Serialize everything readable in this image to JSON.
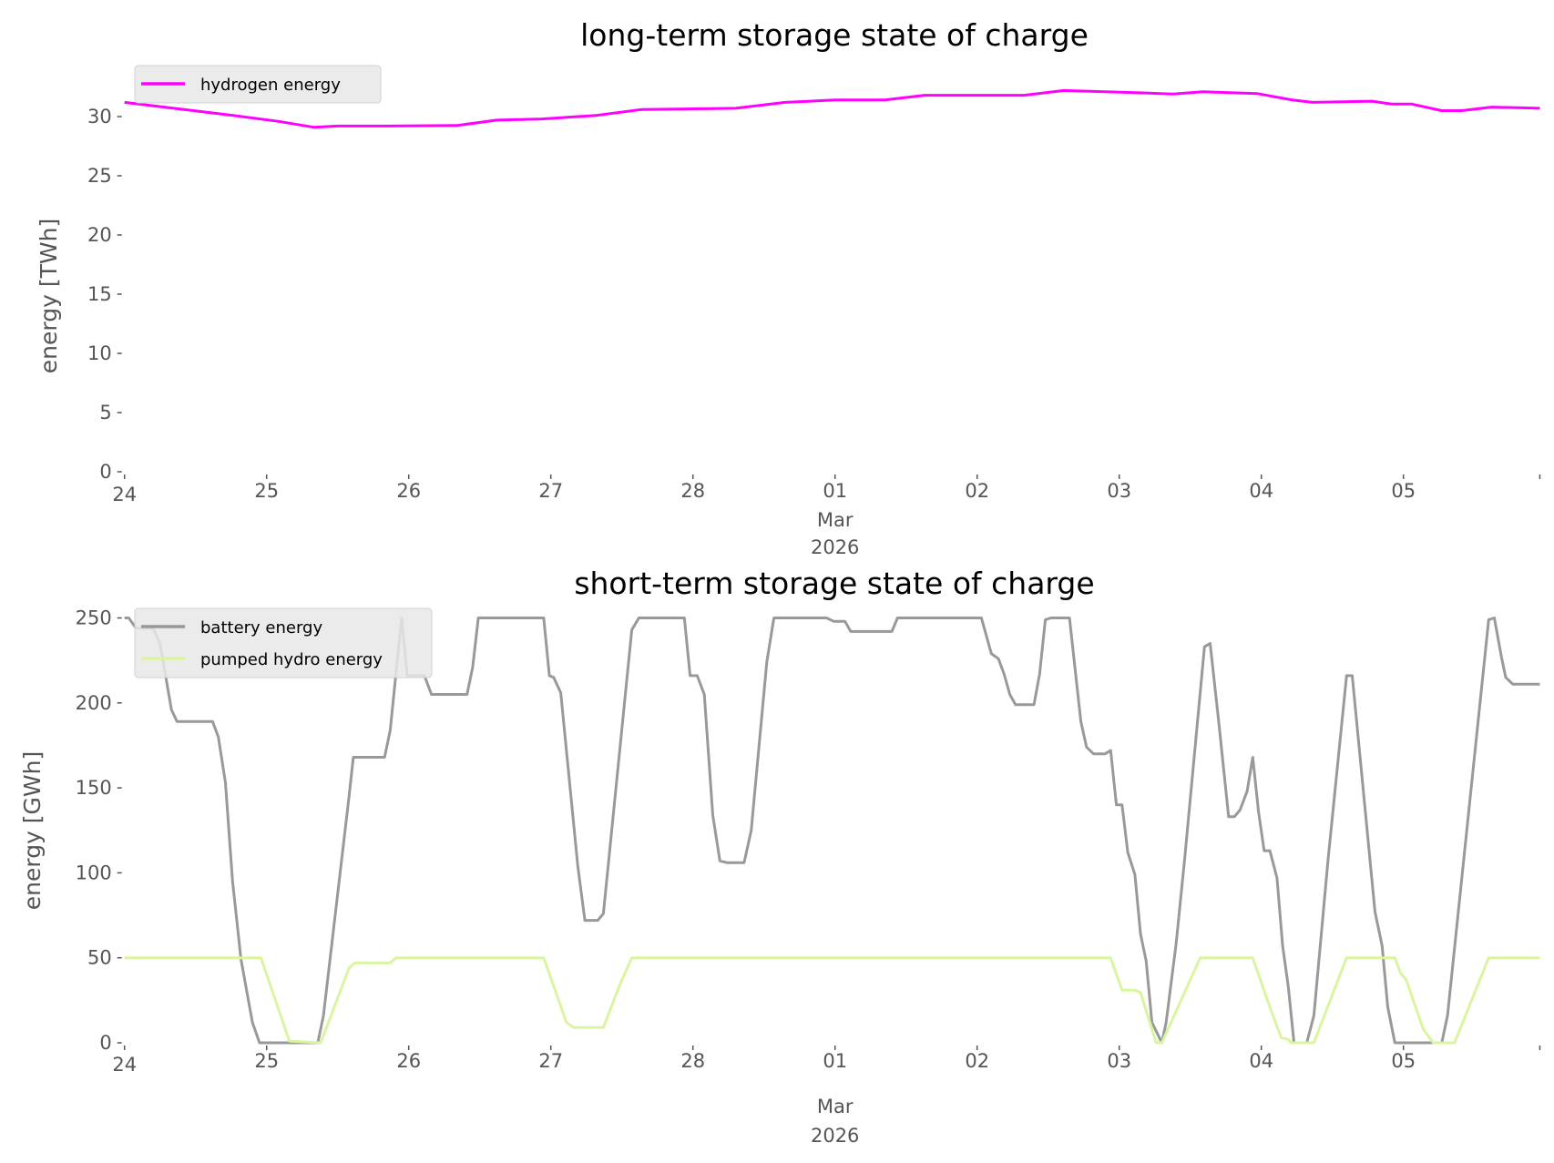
{
  "chart_data": [
    {
      "type": "line",
      "title": "long-term storage state of charge",
      "xlabel": "",
      "ylabel": "energy [TWh]",
      "x_unit": "days since 24 Feb 2026 00:00",
      "xlim": [
        0,
        9.96
      ],
      "ylim": [
        0,
        33
      ],
      "yticks": [
        0,
        5,
        10,
        15,
        20,
        25,
        30
      ],
      "xtick_labels": [
        "24",
        "25",
        "26",
        "27",
        "28",
        "01",
        "02",
        "03",
        "04",
        "05"
      ],
      "xtick_sublabel": [
        "Mar",
        "2026"
      ],
      "legend_position": "upper-left",
      "series": [
        {
          "name": "hydrogen energy",
          "color": "#ff00ff",
          "points": [
            [
              0,
              31.2
            ],
            [
              0.42,
              30.6
            ],
            [
              0.73,
              30.15
            ],
            [
              1.08,
              29.6
            ],
            [
              1.33,
              29.1
            ],
            [
              1.5,
              29.2
            ],
            [
              1.85,
              29.2
            ],
            [
              2.34,
              29.25
            ],
            [
              2.62,
              29.7
            ],
            [
              2.94,
              29.8
            ],
            [
              3.32,
              30.1
            ],
            [
              3.64,
              30.6
            ],
            [
              4.3,
              30.7
            ],
            [
              4.65,
              31.2
            ],
            [
              5.0,
              31.4
            ],
            [
              5.35,
              31.4
            ],
            [
              5.63,
              31.8
            ],
            [
              6.33,
              31.8
            ],
            [
              6.61,
              32.2
            ],
            [
              7.17,
              32.0
            ],
            [
              7.38,
              31.9
            ],
            [
              7.59,
              32.1
            ],
            [
              7.97,
              31.95
            ],
            [
              8.22,
              31.4
            ],
            [
              8.36,
              31.2
            ],
            [
              8.78,
              31.3
            ],
            [
              8.92,
              31.05
            ],
            [
              9.06,
              31.05
            ],
            [
              9.27,
              30.5
            ],
            [
              9.41,
              30.5
            ],
            [
              9.62,
              30.8
            ],
            [
              9.96,
              30.7
            ]
          ]
        }
      ]
    },
    {
      "type": "line",
      "title": "short-term storage state of charge",
      "xlabel": "",
      "ylabel": "energy [GWh]",
      "x_unit": "days since 24 Feb 2026 00:00",
      "xlim": [
        0,
        9.96
      ],
      "ylim": [
        0,
        250
      ],
      "yticks": [
        0,
        50,
        100,
        150,
        200,
        250
      ],
      "xtick_labels": [
        "24",
        "25",
        "26",
        "27",
        "28",
        "01",
        "02",
        "03",
        "04",
        "05"
      ],
      "xtick_sublabel": [
        "Mar",
        "2026"
      ],
      "legend_position": "upper-left",
      "series": [
        {
          "name": "battery energy",
          "color": "#999999",
          "points": [
            [
              0,
              250
            ],
            [
              0.03,
              250
            ],
            [
              0.08,
              244
            ],
            [
              0.2,
              244
            ],
            [
              0.25,
              235
            ],
            [
              0.33,
              196
            ],
            [
              0.37,
              189
            ],
            [
              0.62,
              189
            ],
            [
              0.66,
              180
            ],
            [
              0.71,
              153
            ],
            [
              0.76,
              95
            ],
            [
              0.82,
              49
            ],
            [
              0.9,
              12
            ],
            [
              0.95,
              0
            ],
            [
              1.36,
              0
            ],
            [
              1.4,
              16
            ],
            [
              1.58,
              145
            ],
            [
              1.61,
              168
            ],
            [
              1.83,
              168
            ],
            [
              1.87,
              184
            ],
            [
              1.95,
              250
            ],
            [
              1.99,
              216
            ],
            [
              2.11,
              216
            ],
            [
              2.16,
              205
            ],
            [
              2.41,
              205
            ],
            [
              2.45,
              221
            ],
            [
              2.49,
              250
            ],
            [
              2.95,
              250
            ],
            [
              2.99,
              216
            ],
            [
              3.02,
              215
            ],
            [
              3.07,
              206
            ],
            [
              3.19,
              104
            ],
            [
              3.24,
              72
            ],
            [
              3.33,
              72
            ],
            [
              3.37,
              76
            ],
            [
              3.57,
              243
            ],
            [
              3.62,
              250
            ],
            [
              3.94,
              250
            ],
            [
              3.98,
              216
            ],
            [
              4.03,
              216
            ],
            [
              4.08,
              205
            ],
            [
              4.14,
              134
            ],
            [
              4.19,
              107
            ],
            [
              4.24,
              106
            ],
            [
              4.36,
              106
            ],
            [
              4.41,
              125
            ],
            [
              4.52,
              224
            ],
            [
              4.57,
              250
            ],
            [
              4.94,
              250
            ],
            [
              4.99,
              248
            ],
            [
              5.07,
              248
            ],
            [
              5.11,
              242
            ],
            [
              5.4,
              242
            ],
            [
              5.44,
              250
            ],
            [
              6.03,
              250
            ],
            [
              6.1,
              229
            ],
            [
              6.15,
              226
            ],
            [
              6.19,
              217
            ],
            [
              6.23,
              205
            ],
            [
              6.27,
              199
            ],
            [
              6.4,
              199
            ],
            [
              6.44,
              217
            ],
            [
              6.48,
              249
            ],
            [
              6.52,
              250
            ],
            [
              6.65,
              250
            ],
            [
              6.73,
              189
            ],
            [
              6.77,
              174
            ],
            [
              6.82,
              170
            ],
            [
              6.9,
              170
            ],
            [
              6.94,
              172
            ],
            [
              6.98,
              140
            ],
            [
              7.02,
              140
            ],
            [
              7.06,
              112
            ],
            [
              7.11,
              99
            ],
            [
              7.15,
              64
            ],
            [
              7.19,
              48
            ],
            [
              7.23,
              12
            ],
            [
              7.3,
              0
            ],
            [
              7.33,
              12
            ],
            [
              7.4,
              58
            ],
            [
              7.46,
              108
            ],
            [
              7.6,
              233
            ],
            [
              7.64,
              235
            ],
            [
              7.7,
              189
            ],
            [
              7.77,
              133
            ],
            [
              7.81,
              133
            ],
            [
              7.85,
              137
            ],
            [
              7.9,
              148
            ],
            [
              7.94,
              168
            ],
            [
              7.98,
              136
            ],
            [
              8.02,
              113
            ],
            [
              8.06,
              113
            ],
            [
              8.11,
              97
            ],
            [
              8.15,
              57
            ],
            [
              8.19,
              33
            ],
            [
              8.23,
              0
            ],
            [
              8.32,
              0
            ],
            [
              8.37,
              16
            ],
            [
              8.47,
              108
            ],
            [
              8.6,
              216
            ],
            [
              8.64,
              216
            ],
            [
              8.8,
              77
            ],
            [
              8.85,
              57
            ],
            [
              8.89,
              21
            ],
            [
              8.94,
              0
            ],
            [
              9.27,
              0
            ],
            [
              9.31,
              16
            ],
            [
              9.6,
              249
            ],
            [
              9.64,
              250
            ],
            [
              9.69,
              227
            ],
            [
              9.72,
              215
            ],
            [
              9.77,
              211
            ],
            [
              9.96,
              211
            ]
          ]
        },
        {
          "name": "pumped hydro energy",
          "color": "#d9f5a0",
          "points": [
            [
              0,
              50
            ],
            [
              0.96,
              50
            ],
            [
              1.16,
              1
            ],
            [
              1.38,
              0
            ],
            [
              1.58,
              44
            ],
            [
              1.62,
              47
            ],
            [
              1.87,
              47
            ],
            [
              1.91,
              50
            ],
            [
              2.95,
              50
            ],
            [
              3.11,
              12
            ],
            [
              3.16,
              9
            ],
            [
              3.37,
              9
            ],
            [
              3.48,
              33
            ],
            [
              3.57,
              50
            ],
            [
              6.94,
              50
            ],
            [
              7.02,
              31
            ],
            [
              7.11,
              31
            ],
            [
              7.15,
              29.5
            ],
            [
              7.26,
              0
            ],
            [
              7.3,
              0
            ],
            [
              7.57,
              50
            ],
            [
              7.94,
              50
            ],
            [
              8.06,
              21
            ],
            [
              8.14,
              3
            ],
            [
              8.19,
              2
            ],
            [
              8.21,
              0
            ],
            [
              8.37,
              0
            ],
            [
              8.6,
              50
            ],
            [
              8.94,
              50
            ],
            [
              8.98,
              41
            ],
            [
              9.02,
              37
            ],
            [
              9.14,
              8
            ],
            [
              9.21,
              0
            ],
            [
              9.36,
              0
            ],
            [
              9.6,
              50
            ],
            [
              9.96,
              50
            ]
          ]
        }
      ]
    }
  ]
}
